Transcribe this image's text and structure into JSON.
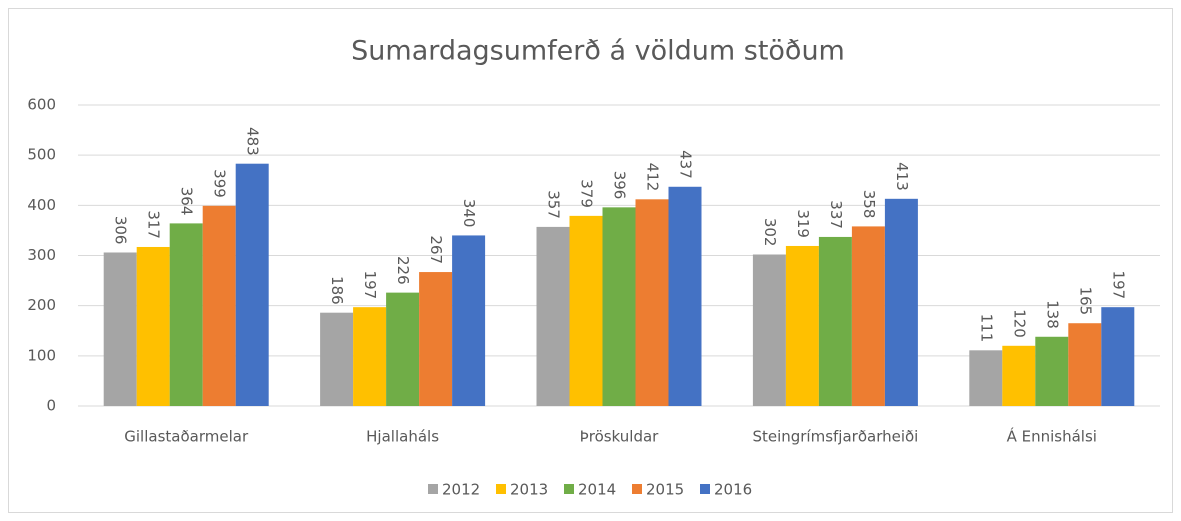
{
  "chart_data": {
    "type": "bar",
    "title": "Sumardagsumferð á völdum stöðum",
    "categories": [
      "Gillastaðarmelar",
      "Hjallaháls",
      "Þröskuldar",
      "Steingrímsfjarðarheiði",
      "Á Ennishálsi"
    ],
    "series": [
      {
        "name": "2012",
        "color": "#a5a5a5",
        "values": [
          306,
          186,
          357,
          302,
          111
        ]
      },
      {
        "name": "2013",
        "color": "#ffc000",
        "values": [
          317,
          197,
          379,
          319,
          120
        ]
      },
      {
        "name": "2014",
        "color": "#70ad47",
        "values": [
          364,
          226,
          396,
          337,
          138
        ]
      },
      {
        "name": "2015",
        "color": "#ed7d31",
        "values": [
          399,
          267,
          412,
          358,
          165
        ]
      },
      {
        "name": "2016",
        "color": "#4472c4",
        "values": [
          483,
          340,
          437,
          413,
          197
        ]
      }
    ],
    "ylim": [
      0,
      600
    ],
    "yticks": [
      0,
      100,
      200,
      300,
      400,
      500,
      600
    ],
    "grid": true
  }
}
